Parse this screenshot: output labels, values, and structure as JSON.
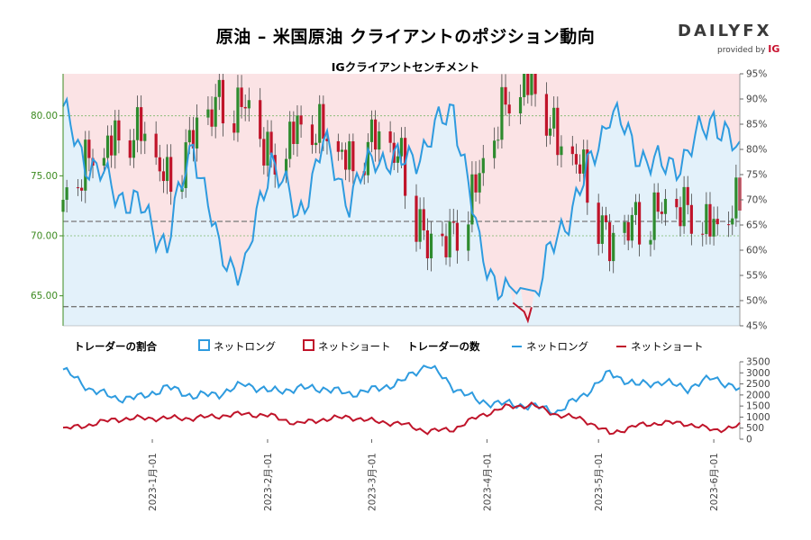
{
  "header": {
    "title": "原油 – 米国原油 クライアントのポジション動向",
    "subtitle": "IGクライアントセンチメント",
    "logo_main": "DAILY",
    "logo_fx": "FX",
    "logo_provided": "provided by",
    "logo_ig": "IG"
  },
  "legend": {
    "ratio_title": "トレーダーの割合",
    "ratio_long": "ネットロング",
    "ratio_short": "ネットショート",
    "count_title": "トレーダーの数",
    "count_long": "ネットロング",
    "count_short": "ネットショート"
  },
  "colors": {
    "long": "#2e9bdf",
    "short": "#c0142a",
    "candle_up": "#2e8b2e",
    "candle_down": "#c0142a",
    "long_fill": "#e3f1fa",
    "short_fill": "#fbe3e5",
    "price_axis": "#3b8a1f"
  },
  "chart_data": [
    {
      "type": "candlestick+line",
      "title": "IGクライアントセンチメント",
      "x_range": [
        "2022-12-08",
        "2023-06-08"
      ],
      "x_ticks": [
        "2023-1月-01",
        "2023-2月-01",
        "2023-3月-01",
        "2023-4月-01",
        "2023-5月-01",
        "2023-6月-01"
      ],
      "y_left": {
        "label": "price",
        "range": [
          62.5,
          83.5
        ],
        "ticks": [
          "65.00",
          "70.00",
          "75.00",
          "80.00"
        ]
      },
      "y_right": {
        "label": "% net long",
        "range": [
          45,
          95
        ],
        "ticks": [
          "45%",
          "50%",
          "55%",
          "60%",
          "65%",
          "70%",
          "75%",
          "80%",
          "85%",
          "90%",
          "95%"
        ]
      },
      "reference_lines": {
        "price_dashed": [
          71.2,
          64.1
        ],
        "price_dotted": [
          80.0,
          70.0
        ]
      },
      "price_close_weekly": [
        {
          "date": "2022-12-08",
          "close": 72.0
        },
        {
          "date": "2022-12-15",
          "close": 76.1
        },
        {
          "date": "2022-12-22",
          "close": 77.5
        },
        {
          "date": "2022-12-29",
          "close": 78.4
        },
        {
          "date": "2023-01-05",
          "close": 74.0
        },
        {
          "date": "2023-01-12",
          "close": 77.8
        },
        {
          "date": "2023-01-19",
          "close": 80.9
        },
        {
          "date": "2023-01-26",
          "close": 80.3
        },
        {
          "date": "2023-02-02",
          "close": 75.8
        },
        {
          "date": "2023-02-09",
          "close": 78.5
        },
        {
          "date": "2023-02-16",
          "close": 78.3
        },
        {
          "date": "2023-02-23",
          "close": 75.5
        },
        {
          "date": "2023-03-02",
          "close": 77.9
        },
        {
          "date": "2023-03-09",
          "close": 75.8
        },
        {
          "date": "2023-03-16",
          "close": 68.4
        },
        {
          "date": "2023-03-23",
          "close": 69.6
        },
        {
          "date": "2023-03-30",
          "close": 74.4
        },
        {
          "date": "2023-04-06",
          "close": 80.7
        },
        {
          "date": "2023-04-13",
          "close": 82.5
        },
        {
          "date": "2023-04-20",
          "close": 77.4
        },
        {
          "date": "2023-04-27",
          "close": 74.8
        },
        {
          "date": "2023-05-04",
          "close": 68.6
        },
        {
          "date": "2023-05-11",
          "close": 70.9
        },
        {
          "date": "2023-05-18",
          "close": 71.7
        },
        {
          "date": "2023-05-25",
          "close": 71.8
        },
        {
          "date": "2023-06-01",
          "close": 70.1
        },
        {
          "date": "2023-06-08",
          "close": 72.5
        }
      ],
      "pct_net_long": [
        {
          "date": "2022-12-08",
          "value": 87
        },
        {
          "date": "2022-12-15",
          "value": 77
        },
        {
          "date": "2022-12-22",
          "value": 72
        },
        {
          "date": "2022-12-29",
          "value": 68
        },
        {
          "date": "2023-01-05",
          "value": 61
        },
        {
          "date": "2023-01-12",
          "value": 82
        },
        {
          "date": "2023-01-19",
          "value": 59
        },
        {
          "date": "2023-01-26",
          "value": 56
        },
        {
          "date": "2023-02-02",
          "value": 79
        },
        {
          "date": "2023-02-09",
          "value": 66
        },
        {
          "date": "2023-02-16",
          "value": 81
        },
        {
          "date": "2023-02-23",
          "value": 70
        },
        {
          "date": "2023-03-02",
          "value": 79
        },
        {
          "date": "2023-03-09",
          "value": 77
        },
        {
          "date": "2023-03-16",
          "value": 81
        },
        {
          "date": "2023-03-23",
          "value": 89
        },
        {
          "date": "2023-03-30",
          "value": 60
        },
        {
          "date": "2023-04-06",
          "value": 51
        },
        {
          "date": "2023-04-13",
          "value": 49
        },
        {
          "date": "2023-04-20",
          "value": 63
        },
        {
          "date": "2023-04-27",
          "value": 73
        },
        {
          "date": "2023-05-04",
          "value": 88
        },
        {
          "date": "2023-05-11",
          "value": 80
        },
        {
          "date": "2023-05-18",
          "value": 76
        },
        {
          "date": "2023-05-25",
          "value": 79
        },
        {
          "date": "2023-06-01",
          "value": 87
        },
        {
          "date": "2023-06-08",
          "value": 78
        }
      ]
    },
    {
      "type": "line",
      "title": "トレーダーの数",
      "y_range": [
        0,
        3500
      ],
      "y_ticks": [
        "0",
        "500",
        "1000",
        "1500",
        "2000",
        "2500",
        "3000",
        "3500"
      ],
      "series": [
        {
          "name": "ネットロング",
          "values": [
            3150,
            2300,
            1850,
            1900,
            2350,
            1950,
            2050,
            2500,
            2150,
            2300,
            2300,
            2050,
            2250,
            2600,
            3400,
            2350,
            1700,
            1600,
            1500,
            1250,
            2000,
            3000,
            2450,
            2600,
            2300,
            2800,
            2200
          ]
        },
        {
          "name": "ネットショート",
          "values": [
            450,
            650,
            900,
            950,
            950,
            950,
            1050,
            1150,
            1050,
            700,
            900,
            1000,
            800,
            700,
            350,
            450,
            1050,
            1450,
            1550,
            1100,
            900,
            250,
            600,
            750,
            700,
            400,
            600
          ]
        }
      ],
      "x": [
        "2022-12-08",
        "2022-12-15",
        "2022-12-22",
        "2022-12-29",
        "2023-01-05",
        "2023-01-12",
        "2023-01-19",
        "2023-01-26",
        "2023-02-02",
        "2023-02-09",
        "2023-02-16",
        "2023-02-23",
        "2023-03-02",
        "2023-03-09",
        "2023-03-16",
        "2023-03-23",
        "2023-03-30",
        "2023-04-06",
        "2023-04-13",
        "2023-04-20",
        "2023-04-27",
        "2023-05-04",
        "2023-05-11",
        "2023-05-18",
        "2023-05-25",
        "2023-06-01",
        "2023-06-08"
      ]
    }
  ]
}
